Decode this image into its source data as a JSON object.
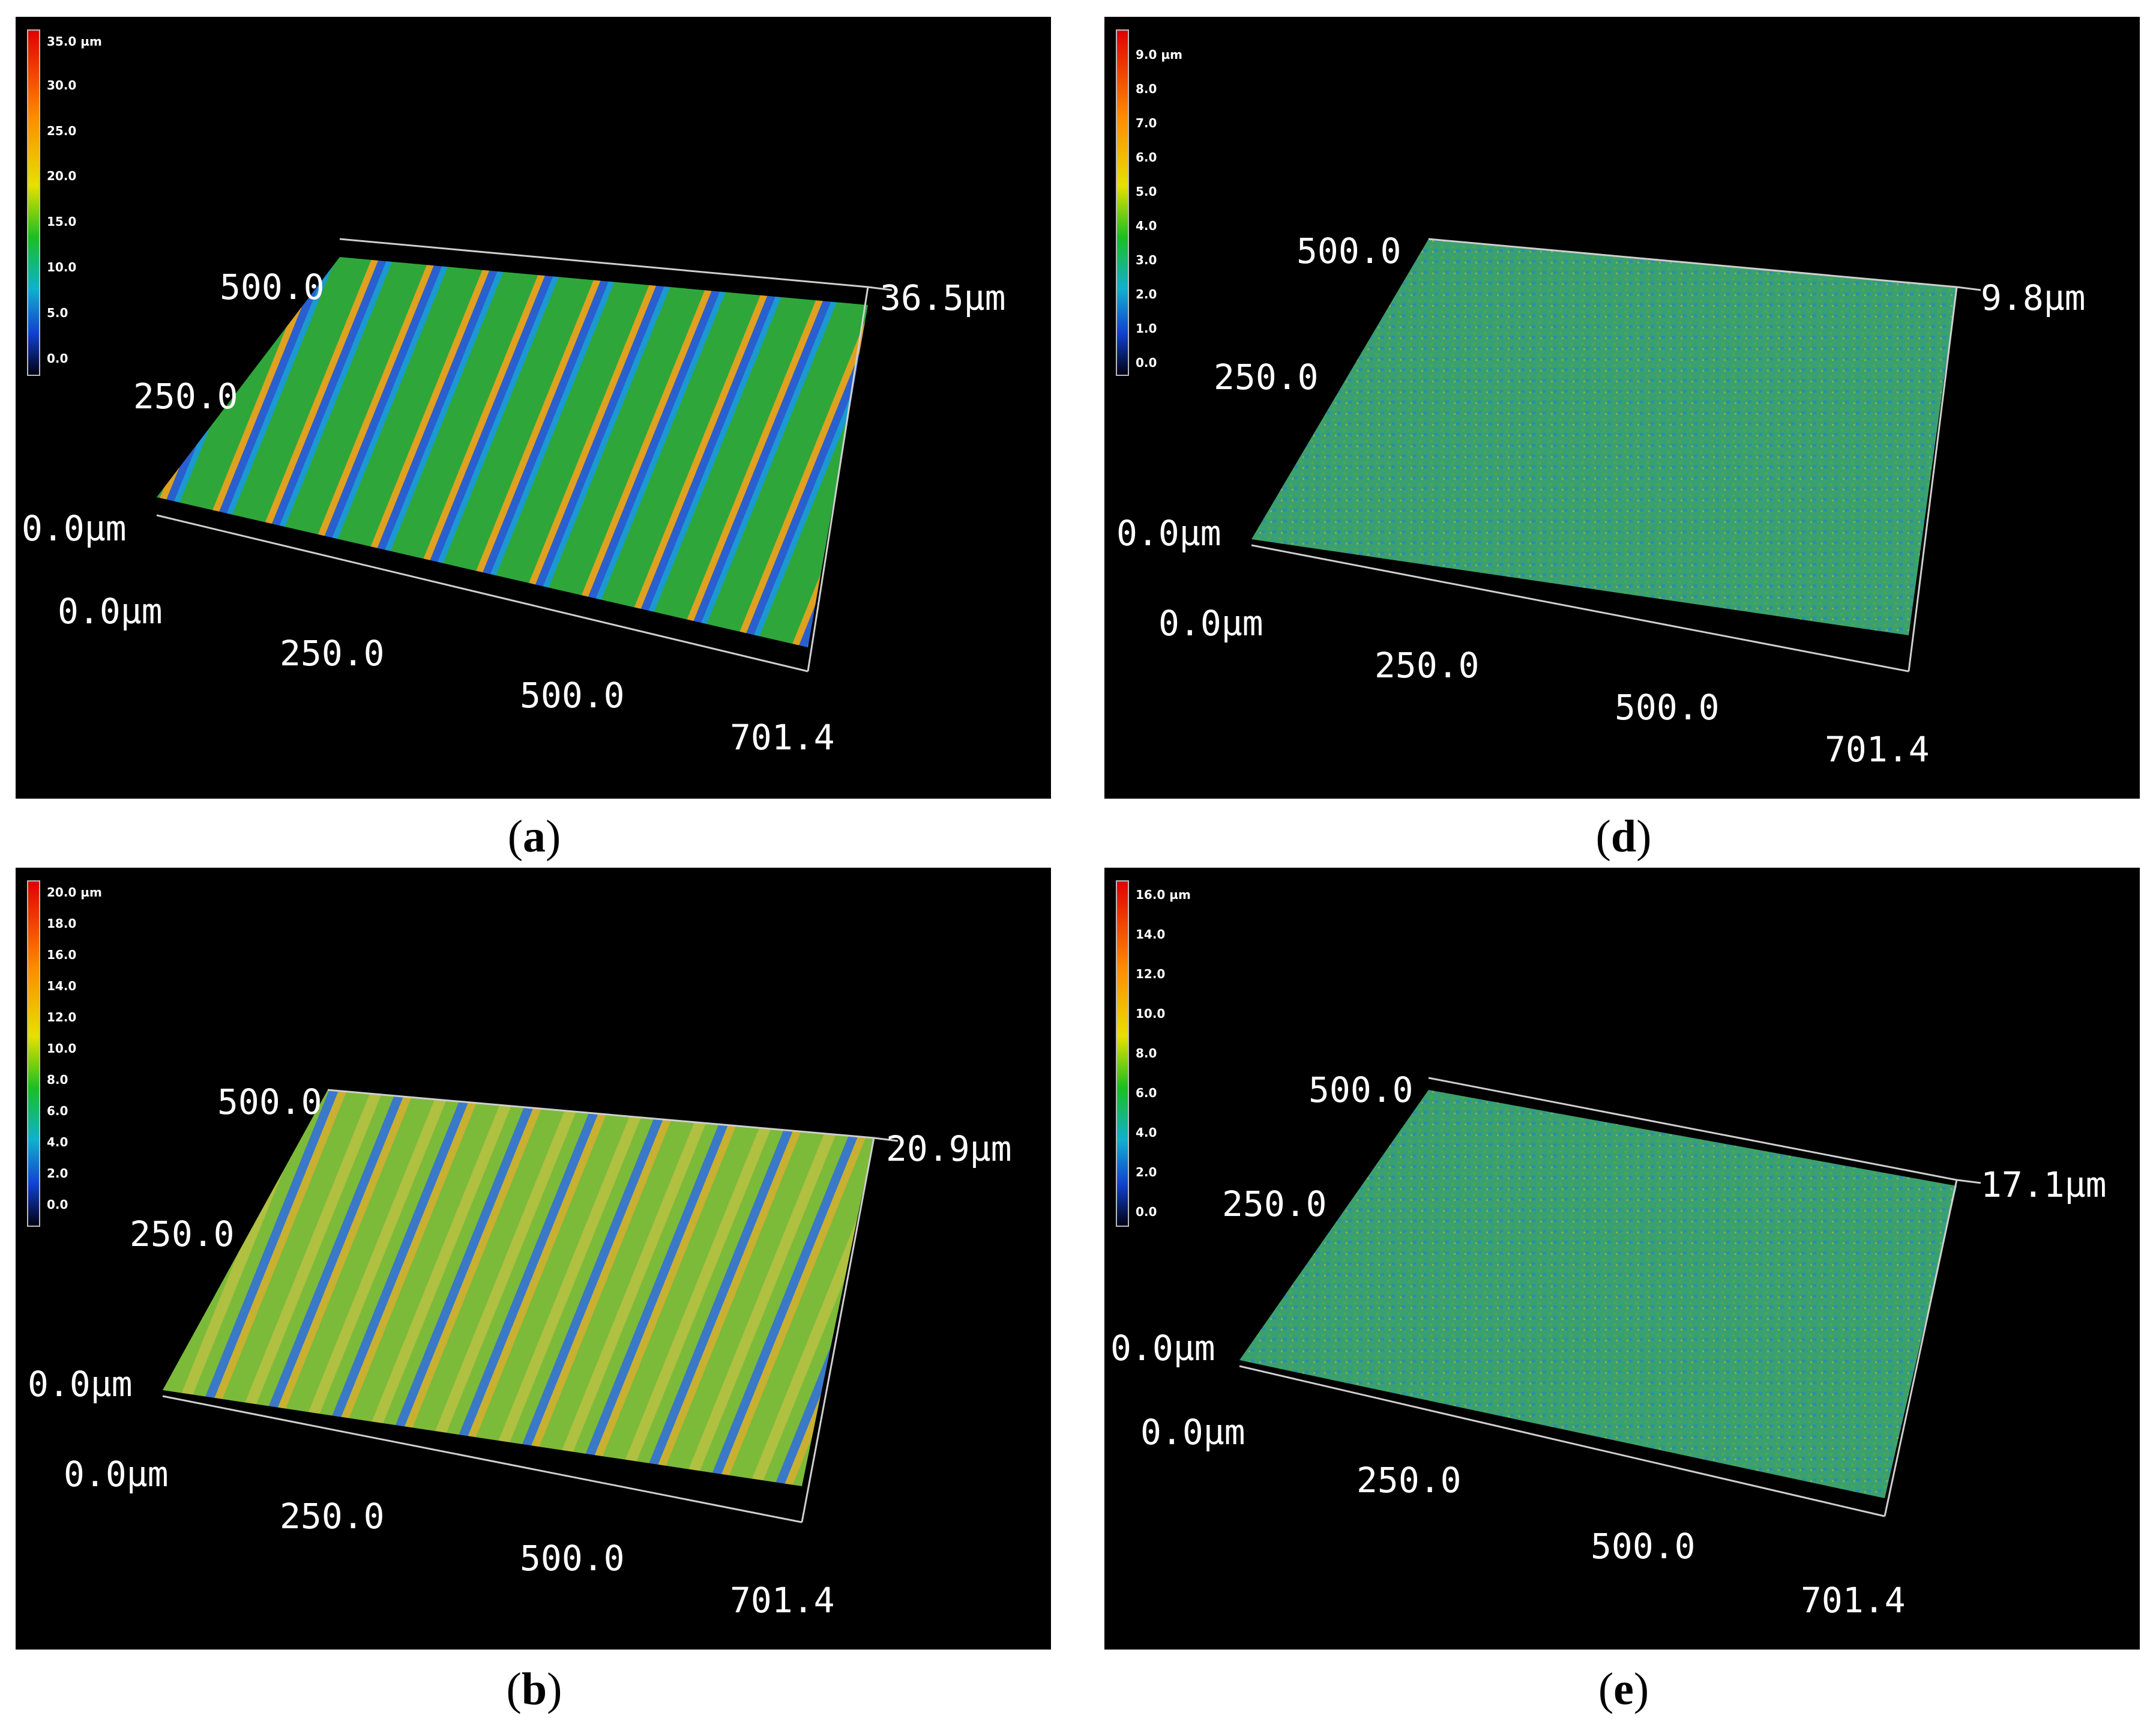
{
  "panels": [
    {
      "id": "a",
      "caption": "a",
      "colorbar": [
        "35.0 µm",
        "30.0",
        "25.0",
        "20.0",
        "15.0",
        "10.0",
        "5.0",
        "0.0"
      ],
      "z_label": "36.5µm",
      "y_labels": [
        "500.0",
        "250.0",
        "0.0µm"
      ],
      "x_labels": [
        "0.0µm",
        "250.0",
        "500.0",
        "701.4"
      ],
      "surface": "ridged-strong"
    },
    {
      "id": "d",
      "caption": "d",
      "colorbar": [
        "9.0 µm",
        "8.0",
        "7.0",
        "6.0",
        "5.0",
        "4.0",
        "3.0",
        "2.0",
        "1.0",
        "0.0"
      ],
      "z_label": "9.8µm",
      "y_labels": [
        "500.0",
        "250.0",
        "0.0µm"
      ],
      "x_labels": [
        "0.0µm",
        "250.0",
        "500.0",
        "701.4"
      ],
      "surface": "flat"
    },
    {
      "id": "b",
      "caption": "b",
      "colorbar": [
        "20.0 µm",
        "18.0",
        "16.0",
        "14.0",
        "12.0",
        "10.0",
        "8.0",
        "6.0",
        "4.0",
        "2.0",
        "0.0"
      ],
      "z_label": "20.9µm",
      "y_labels": [
        "500.0",
        "250.0",
        "0.0µm"
      ],
      "x_labels": [
        "0.0µm",
        "250.0",
        "500.0",
        "701.4"
      ],
      "surface": "ridged-soft"
    },
    {
      "id": "e",
      "caption": "e",
      "colorbar": [
        "16.0 µm",
        "14.0",
        "12.0",
        "10.0",
        "8.0",
        "6.0",
        "4.0",
        "2.0",
        "0.0"
      ],
      "z_label": "17.1µm",
      "y_labels": [
        "500.0",
        "250.0",
        "0.0µm"
      ],
      "x_labels": [
        "0.0µm",
        "250.0",
        "500.0",
        "701.4"
      ],
      "surface": "flat"
    }
  ]
}
